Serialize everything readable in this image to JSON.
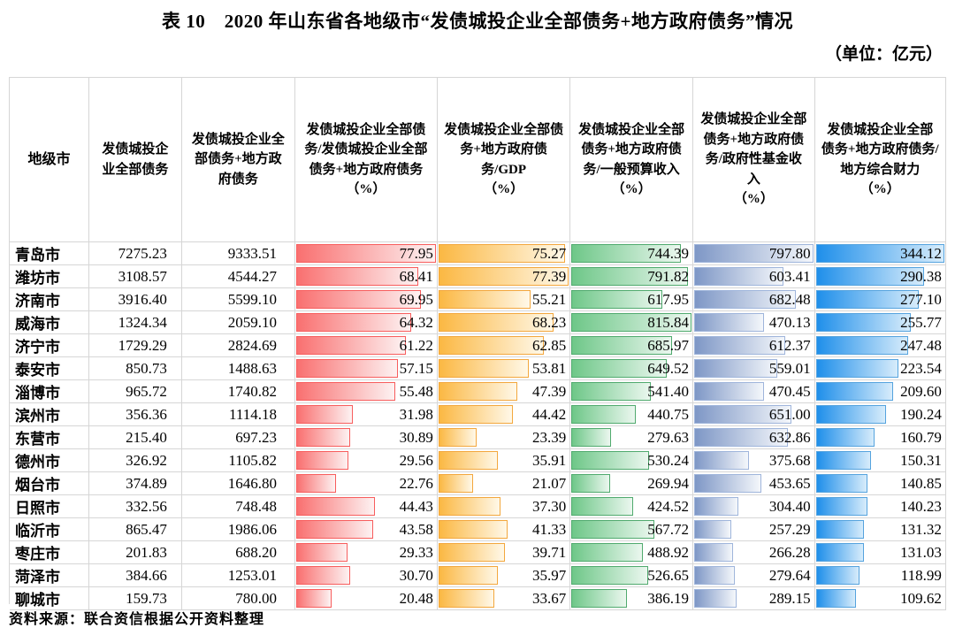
{
  "title": "表 10　2020 年山东省各地级市“发债城投企业全部债务+地方政府债务”情况",
  "unit_note": "（单位：亿元）",
  "source": "资料来源：联合资信根据公开资料整理",
  "chart_data": {
    "type": "table",
    "title": "2020 年山东省各地级市“发债城投企业全部债务+地方政府债务”情况",
    "unit": "亿元",
    "columns": [
      {
        "title": "地级市",
        "unit": ""
      },
      {
        "title": "发债城投企业全部债务",
        "unit": ""
      },
      {
        "title": "发债城投企业全部债务+地方政府债务",
        "unit": ""
      },
      {
        "title": "发债城投企业全部债务/发债城投企业全部债务+地方政府债务",
        "unit": "（%）"
      },
      {
        "title": "发债城投企业全部债务+地方政府债务/GDP",
        "unit": "（%）"
      },
      {
        "title": "发债城投企业全部债务+地方政府债务/一般预算收入",
        "unit": "（%）"
      },
      {
        "title": "发债城投企业全部债务+地方政府债务/政府性基金收入",
        "unit": "（%）"
      },
      {
        "title": "发债城投企业全部债务+地方政府债务/地方综合财力",
        "unit": "（%）"
      }
    ],
    "rows": [
      {
        "city": "青岛市",
        "values": [
          7275.23,
          9333.51,
          77.95,
          75.27,
          744.39,
          797.8,
          344.12
        ]
      },
      {
        "city": "潍坊市",
        "values": [
          3108.57,
          4544.27,
          68.41,
          77.39,
          791.82,
          603.41,
          290.38
        ]
      },
      {
        "city": "济南市",
        "values": [
          3916.4,
          5599.1,
          69.95,
          55.21,
          617.95,
          682.48,
          277.1
        ]
      },
      {
        "city": "威海市",
        "values": [
          1324.34,
          2059.1,
          64.32,
          68.23,
          815.84,
          470.13,
          255.77
        ]
      },
      {
        "city": "济宁市",
        "values": [
          1729.29,
          2824.69,
          61.22,
          62.85,
          685.97,
          612.37,
          247.48
        ]
      },
      {
        "city": "泰安市",
        "values": [
          850.73,
          1488.63,
          57.15,
          53.81,
          649.52,
          559.01,
          223.54
        ]
      },
      {
        "city": "淄博市",
        "values": [
          965.72,
          1740.82,
          55.48,
          47.39,
          541.4,
          470.45,
          209.6
        ]
      },
      {
        "city": "滨州市",
        "values": [
          356.36,
          1114.18,
          31.98,
          44.42,
          440.75,
          651.0,
          190.24
        ]
      },
      {
        "city": "东营市",
        "values": [
          215.4,
          697.23,
          30.89,
          23.39,
          279.63,
          632.86,
          160.79
        ]
      },
      {
        "city": "德州市",
        "values": [
          326.92,
          1105.82,
          29.56,
          35.91,
          530.24,
          375.68,
          150.31
        ]
      },
      {
        "city": "烟台市",
        "values": [
          374.89,
          1646.8,
          22.76,
          21.07,
          269.94,
          453.65,
          140.85
        ]
      },
      {
        "city": "日照市",
        "values": [
          332.56,
          748.48,
          44.43,
          37.3,
          424.52,
          304.4,
          140.23
        ]
      },
      {
        "city": "临沂市",
        "values": [
          865.47,
          1986.06,
          43.58,
          41.33,
          567.72,
          257.29,
          131.32
        ]
      },
      {
        "city": "枣庄市",
        "values": [
          201.83,
          688.2,
          29.33,
          39.71,
          488.92,
          266.28,
          131.03
        ]
      },
      {
        "city": "菏泽市",
        "values": [
          384.66,
          1253.01,
          30.7,
          35.97,
          526.65,
          279.64,
          118.99
        ]
      },
      {
        "city": "聊城市",
        "values": [
          159.73,
          780.0,
          20.48,
          33.67,
          386.19,
          289.15,
          109.62
        ]
      }
    ],
    "data_bars": {
      "2": {
        "max": 77.95,
        "color_start": "#f97070",
        "color_end": "#fdf2f2",
        "border": "#f75d5d"
      },
      "3": {
        "max": 77.39,
        "color_start": "#fbb843",
        "color_end": "#fff8e8",
        "border": "#f3a73d"
      },
      "4": {
        "max": 815.84,
        "color_start": "#6ec788",
        "color_end": "#ebf7ef",
        "border": "#50aa6e"
      },
      "5": {
        "max": 797.8,
        "color_start": "#7e97c6",
        "color_end": "#f4f7fb",
        "border": "#9fb5db"
      },
      "6": {
        "max": 344.12,
        "color_start": "#1f8fea",
        "color_end": "#d7ecfb",
        "border": "#55a3de"
      }
    },
    "layout": {
      "grid": "light-gray",
      "bar_scale": "value / column max",
      "number_format": "2 decimals"
    }
  }
}
